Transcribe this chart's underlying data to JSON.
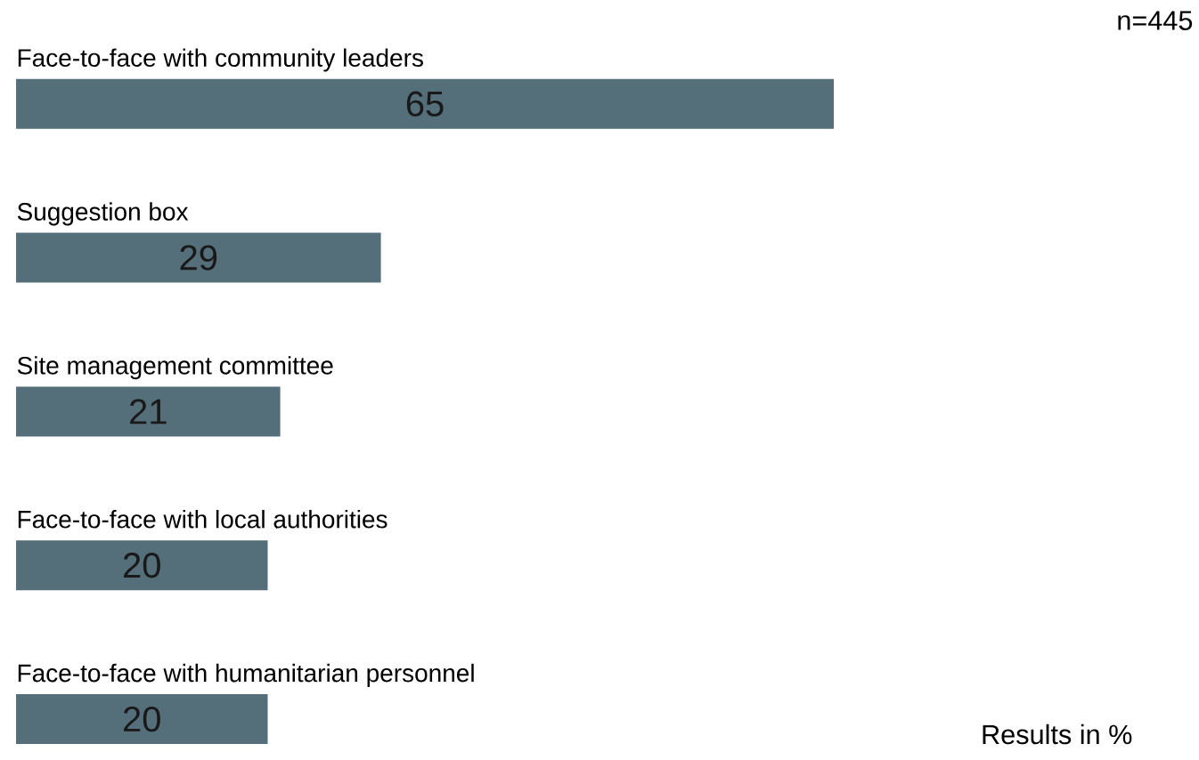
{
  "chart_data": {
    "type": "bar",
    "orientation": "horizontal",
    "categories": [
      "Face-to-face with community leaders",
      "Suggestion box",
      "Site management committee",
      "Face-to-face with local authorities",
      "Face-to-face with humanitarian personnel"
    ],
    "values": [
      65,
      29,
      21,
      20,
      20
    ],
    "color": "#546e7a",
    "data_labels": true,
    "annotations": [
      "n=445",
      "Results in %"
    ]
  }
}
